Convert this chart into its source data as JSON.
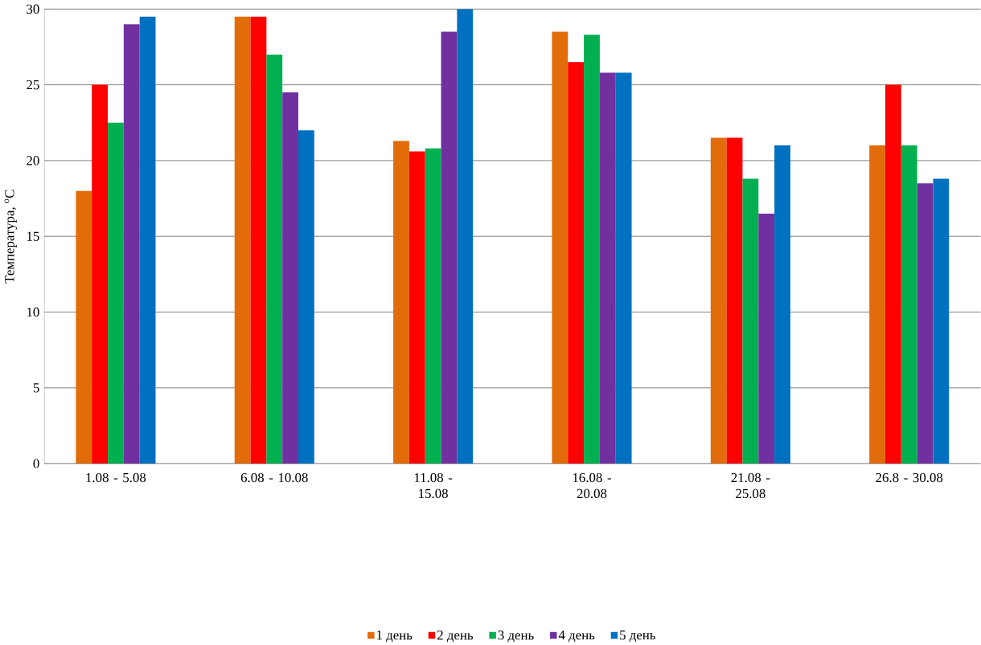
{
  "chart_data": {
    "type": "bar",
    "ylabel": "Температура, $^{o}$С",
    "categories": [
      "1.08 - 5.08",
      "6.08 - 10.08",
      "11.08 - 15.08",
      "16.08 - 20.08",
      "21.08 - 25.08",
      "26.8 - 30.08"
    ],
    "series": [
      {
        "name": "1 день",
        "color": "#e36c0a",
        "values": [
          18,
          29.5,
          21.3,
          28.5,
          21.5,
          21
        ]
      },
      {
        "name": "2 день",
        "color": "#ff0000",
        "values": [
          25,
          29.5,
          20.6,
          26.5,
          21.5,
          25
        ]
      },
      {
        "name": "3 день",
        "color": "#00b050",
        "values": [
          22.5,
          27,
          20.8,
          28.3,
          18.8,
          21
        ]
      },
      {
        "name": "4 день",
        "color": "#7030a0",
        "values": [
          29,
          24.5,
          28.5,
          25.8,
          16.5,
          18.5
        ]
      },
      {
        "name": "5 день",
        "color": "#0070c0",
        "values": [
          29.5,
          22,
          30,
          25.8,
          21,
          18.8
        ]
      }
    ],
    "ylim": [
      0,
      30
    ],
    "yticks": [
      0,
      5,
      10,
      15,
      20,
      25,
      30
    ],
    "grid": "y",
    "legend": "bottom"
  }
}
